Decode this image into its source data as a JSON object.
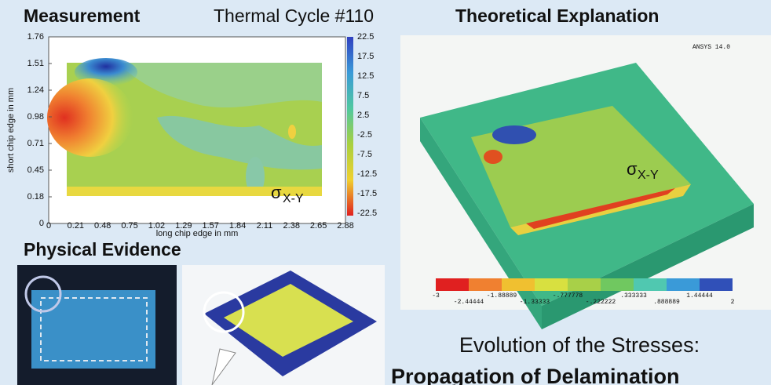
{
  "header": {
    "left": "Measurement",
    "center": "Thermal Cycle #110",
    "right": "Theoretical Explanation"
  },
  "contour": {
    "y_label": "short chip edge in mm",
    "x_label": "long chip edge in mm",
    "y_ticks": [
      "1.76",
      "1.51",
      "1.24",
      "0.98",
      "0.71",
      "0.45",
      "0.18",
      "0"
    ],
    "x_ticks": [
      "0",
      "0.21",
      "0.48",
      "0.75",
      "1.02",
      "1.29",
      "1.57",
      "1.84",
      "2.11",
      "2.38",
      "2.65",
      "2.88"
    ],
    "colorbar_ticks": [
      "22.5",
      "17.5",
      "12.5",
      "7.5",
      "2.5",
      "-2.5",
      "-7.5",
      "-12.5",
      "-17.5",
      "-22.5"
    ],
    "symbol": "σ",
    "subscript": "X-Y"
  },
  "simulation": {
    "info": "ANSYS 14.0",
    "legend": [
      "-3",
      "-2.44444",
      "-1.88889",
      "-1.33333",
      "-.777778",
      "-.222222",
      ".333333",
      ".888889",
      "1.44444",
      "2"
    ],
    "symbol": "σ",
    "subscript": "X-Y"
  },
  "evidence": {
    "title": "Physical Evidence"
  },
  "conclusion": {
    "line1": "Evolution of the Stresses:",
    "line2": "Propagation of Delamination"
  }
}
